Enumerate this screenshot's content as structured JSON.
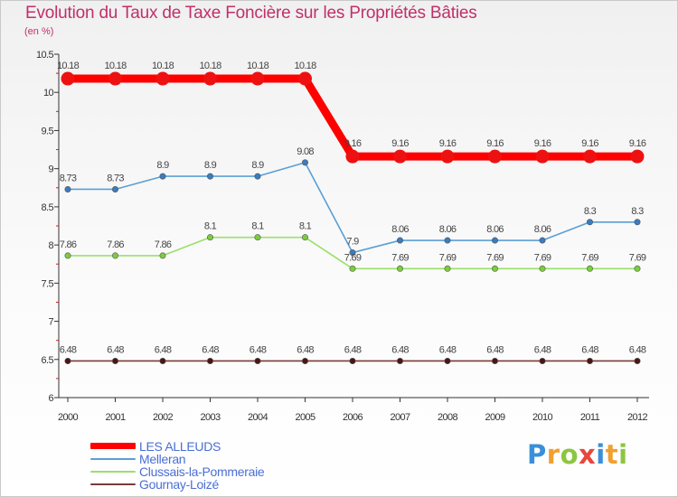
{
  "header": {
    "title": "Evolution du Taux de Taxe Foncière sur les Propriétés Bâties",
    "subtitle": "(en %)"
  },
  "chart_data": {
    "type": "line",
    "title": "Evolution du Taux de Taxe Foncière sur les Propriétés Bâties",
    "ylabel": "(en %)",
    "xlabel": "",
    "categories": [
      "2000",
      "2001",
      "2002",
      "2003",
      "2004",
      "2005",
      "2006",
      "2007",
      "2008",
      "2009",
      "2010",
      "2011",
      "2012"
    ],
    "y_ticks": [
      "6",
      "6.5",
      "7",
      "7.5",
      "8",
      "8.5",
      "9",
      "9.5",
      "10",
      "10.5"
    ],
    "ylim": [
      6,
      10.5
    ],
    "grid": false,
    "legend_position": "bottom-left",
    "series": [
      {
        "name": "LES ALLEUDS",
        "color": "#ff0000",
        "marker": "#ee1111",
        "values": [
          10.18,
          10.18,
          10.18,
          10.18,
          10.18,
          10.18,
          9.16,
          9.16,
          9.16,
          9.16,
          9.16,
          9.16,
          9.16
        ],
        "labels": [
          "10.18",
          "10.18",
          "10.18",
          "10.18",
          "10.18",
          "10.18",
          "9.16",
          "9.16",
          "9.16",
          "9.16",
          "9.16",
          "9.16",
          "9.16"
        ]
      },
      {
        "name": "Melleran",
        "color": "#5a9fd4",
        "marker": "#3a7cc0",
        "values": [
          8.73,
          8.73,
          8.9,
          8.9,
          8.9,
          9.08,
          7.9,
          8.06,
          8.06,
          8.06,
          8.06,
          8.3,
          8.3
        ],
        "labels": [
          "8.73",
          "8.73",
          "8.9",
          "8.9",
          "8.9",
          "9.08",
          "7.9",
          "8.06",
          "8.06",
          "8.06",
          "8.06",
          "8.3",
          "8.3"
        ]
      },
      {
        "name": "Clussais-la-Pommeraie",
        "color": "#9be06a",
        "marker": "#7ccc3c",
        "values": [
          7.86,
          7.86,
          7.86,
          8.1,
          8.1,
          8.1,
          7.69,
          7.69,
          7.69,
          7.69,
          7.69,
          7.69,
          7.69
        ],
        "labels": [
          "7.86",
          "7.86",
          "7.86",
          "8.1",
          "8.1",
          "8.1",
          "7.69",
          "7.69",
          "7.69",
          "7.69",
          "7.69",
          "7.69",
          "7.69"
        ]
      },
      {
        "name": "Gournay-Loizé",
        "color": "#7a3a3a",
        "marker": "#4a1515",
        "values": [
          6.48,
          6.48,
          6.48,
          6.48,
          6.48,
          6.48,
          6.48,
          6.48,
          6.48,
          6.48,
          6.48,
          6.48,
          6.48
        ],
        "labels": [
          "6.48",
          "6.48",
          "6.48",
          "6.48",
          "6.48",
          "6.48",
          "6.48",
          "6.48",
          "6.48",
          "6.48",
          "6.48",
          "6.48",
          "6.48"
        ]
      }
    ]
  },
  "legend": {
    "items": [
      {
        "label": "LES ALLEUDS",
        "color": "#ff0000"
      },
      {
        "label": "Melleran",
        "color": "#5a9fd4"
      },
      {
        "label": "Clussais-la-Pommeraie",
        "color": "#9be06a"
      },
      {
        "label": "Gournay-Loizé",
        "color": "#7a3a3a"
      }
    ]
  },
  "logo": {
    "text": "Proxiti",
    "letters": [
      {
        "ch": "P",
        "color": "#3a8fd8"
      },
      {
        "ch": "r",
        "color": "#f0a030"
      },
      {
        "ch": "o",
        "color": "#8cc63f"
      },
      {
        "ch": "x",
        "color": "#e8453c"
      },
      {
        "ch": "i",
        "color": "#3a8fd8"
      },
      {
        "ch": "t",
        "color": "#f0a030"
      },
      {
        "ch": "i",
        "color": "#8cc63f"
      }
    ]
  }
}
